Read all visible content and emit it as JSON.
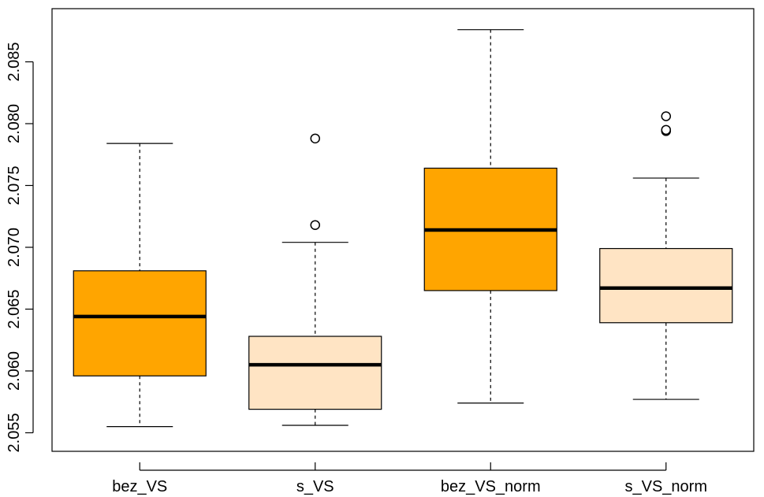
{
  "chart_data": {
    "type": "boxplot",
    "title": "",
    "xlabel": "",
    "ylabel": "",
    "ylim": [
      2.0535,
      2.0893
    ],
    "y_ticks": [
      2.055,
      2.06,
      2.065,
      2.07,
      2.075,
      2.08,
      2.085
    ],
    "y_tick_labels": [
      "2.055",
      "2.060",
      "2.065",
      "2.070",
      "2.075",
      "2.080",
      "2.085"
    ],
    "grid": false,
    "legend": "none",
    "categories": [
      "bez_VS",
      "s_VS",
      "bez_VS_norm",
      "s_VS_norm"
    ],
    "boxes": [
      {
        "label": "bez_VS",
        "whisker_low": 2.0555,
        "q1": 2.0596,
        "median": 2.0644,
        "q3": 2.0681,
        "whisker_high": 2.0784,
        "outliers": [],
        "color": "#FFA500"
      },
      {
        "label": "s_VS",
        "whisker_low": 2.0556,
        "q1": 2.0569,
        "median": 2.0605,
        "q3": 2.0628,
        "whisker_high": 2.0704,
        "outliers": [
          2.0718,
          2.0788
        ],
        "color": "#FFE4C4"
      },
      {
        "label": "bez_VS_norm",
        "whisker_low": 2.0574,
        "q1": 2.0665,
        "median": 2.0714,
        "q3": 2.0764,
        "whisker_high": 2.0876,
        "outliers": [],
        "color": "#FFA500"
      },
      {
        "label": "s_VS_norm",
        "whisker_low": 2.0577,
        "q1": 2.0639,
        "median": 2.0667,
        "q3": 2.0699,
        "whisker_high": 2.0756,
        "outliers": [
          2.0794,
          2.0795,
          2.0806
        ],
        "color": "#FFE4C4"
      }
    ]
  }
}
